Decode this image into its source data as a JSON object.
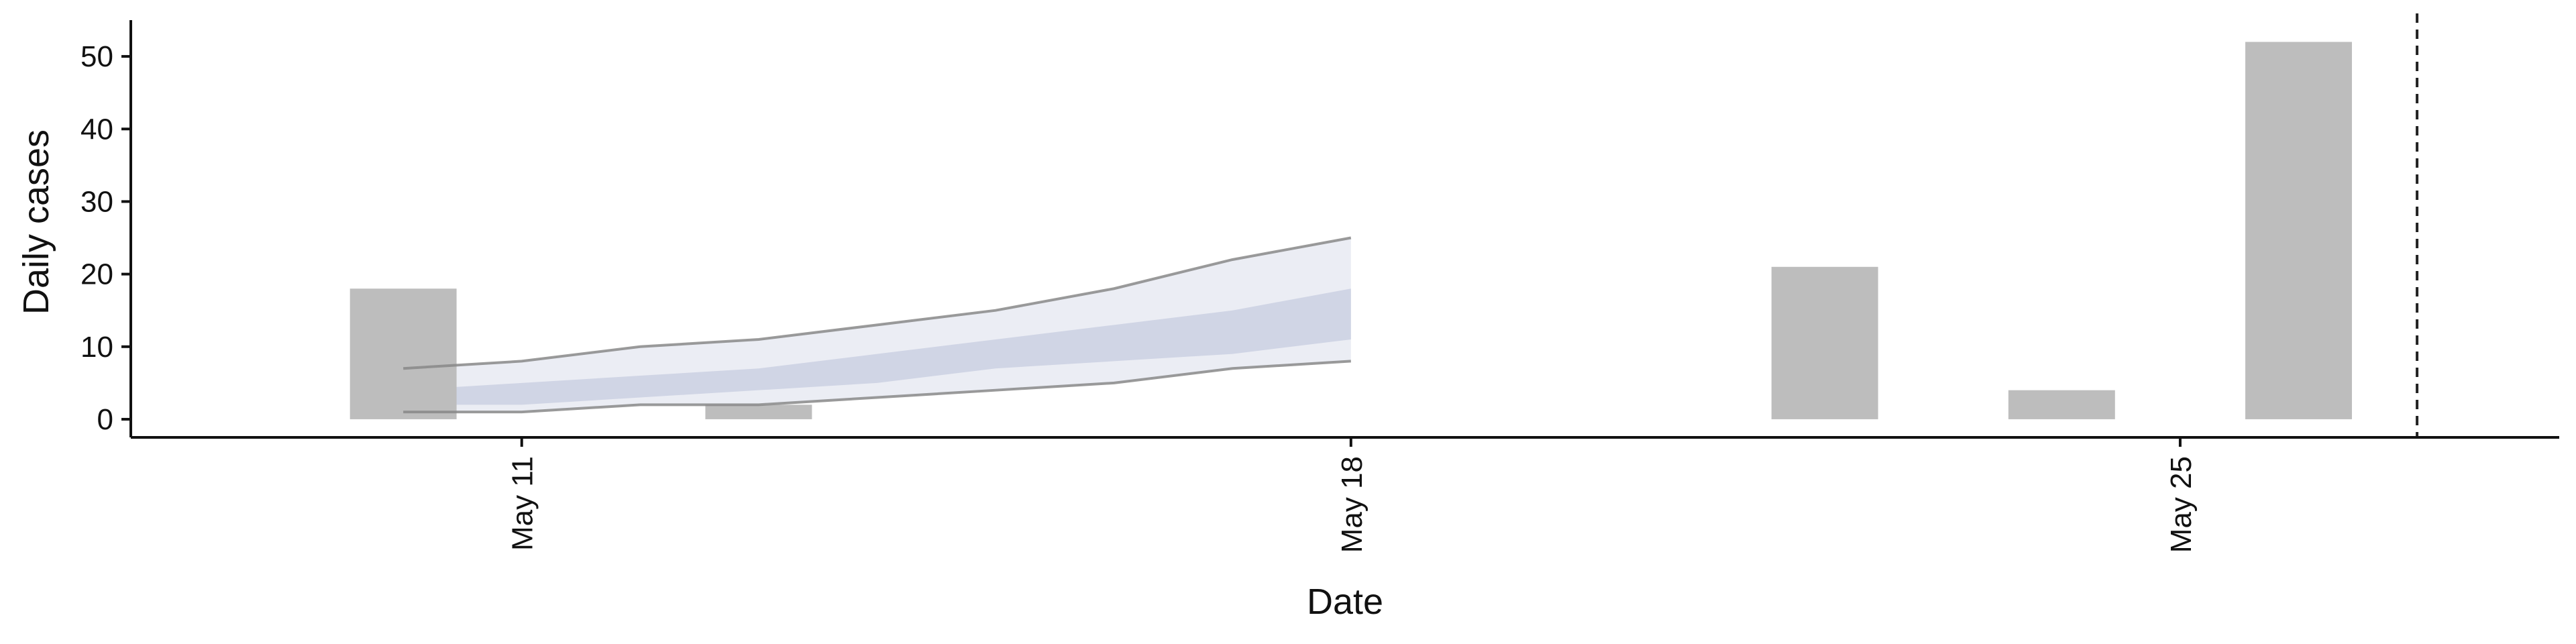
{
  "chart_data": {
    "type": "bar",
    "title": "",
    "xlabel": "Date",
    "ylabel": "Daily cases",
    "ylim": [
      -2.5,
      55
    ],
    "yticks": [
      0,
      10,
      20,
      30,
      40,
      50
    ],
    "xlim": [
      "2005-05-08",
      "2005-05-28"
    ],
    "xticks": [
      {
        "date": "2005-05-11",
        "label": "May 11"
      },
      {
        "date": "2005-05-18",
        "label": "May 18"
      },
      {
        "date": "2005-05-25",
        "label": "May 25"
      }
    ],
    "grid": false,
    "legend": "none",
    "bars": {
      "color": "#bdbdbd",
      "data": [
        {
          "x": "2005-05-10",
          "y": 18
        },
        {
          "x": "2005-05-13",
          "y": 2
        },
        {
          "x": "2005-05-22",
          "y": 21
        },
        {
          "x": "2005-05-24",
          "y": 4
        },
        {
          "x": "2005-05-26",
          "y": 52
        }
      ]
    },
    "forecast": {
      "x": [
        "2005-05-10",
        "2005-05-11",
        "2005-05-12",
        "2005-05-13",
        "2005-05-14",
        "2005-05-15",
        "2005-05-16",
        "2005-05-17",
        "2005-05-18"
      ],
      "outer_upper": [
        7,
        8,
        10,
        11,
        13,
        15,
        18,
        22,
        25
      ],
      "outer_lower": [
        1,
        1,
        2,
        2,
        3,
        4,
        5,
        7,
        8
      ],
      "inner_upper": [
        4,
        5,
        6,
        7,
        9,
        11,
        13,
        15,
        18
      ],
      "inner_lower": [
        2,
        2,
        3,
        4,
        5,
        7,
        8,
        9,
        11
      ],
      "outer_color": "#e8eaf2",
      "inner_color": "#c7cce0",
      "line_color": "#888888"
    },
    "reference_line": {
      "x": "2005-05-27",
      "style": "dashed",
      "color": "#222222"
    }
  }
}
